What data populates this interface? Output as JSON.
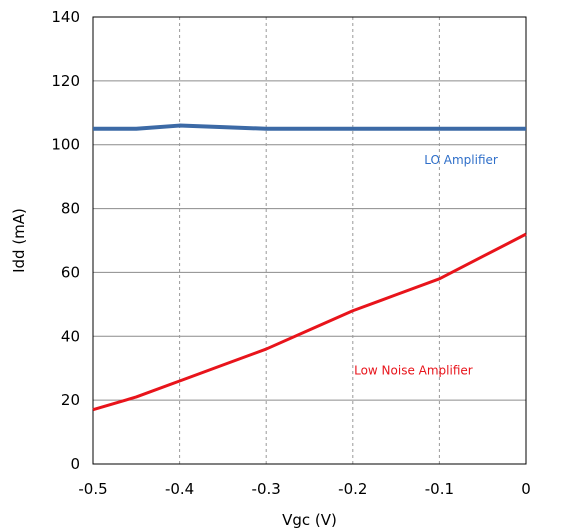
{
  "chart_data": {
    "type": "line",
    "title": "",
    "xlabel": "Vgc (V)",
    "ylabel": "Idd (mA)",
    "xlim": [
      -0.5,
      0
    ],
    "ylim": [
      0,
      140
    ],
    "x_ticks": [
      "-0.5",
      "-0.4",
      "-0.3",
      "-0.2",
      "-0.1",
      "0"
    ],
    "y_ticks": [
      "0",
      "20",
      "40",
      "60",
      "80",
      "100",
      "120",
      "140"
    ],
    "grid": "vertical gridlines dashed, horizontal gridlines solid",
    "legend": "none",
    "series": [
      {
        "name": "LO Amplifier",
        "color": "#3C6AA6",
        "x": [
          -0.5,
          -0.45,
          -0.4,
          -0.35,
          -0.3,
          -0.25,
          -0.2,
          -0.15,
          -0.1,
          -0.05,
          0
        ],
        "y": [
          105,
          105,
          106,
          105.5,
          105,
          105,
          105,
          105,
          105,
          105,
          105
        ]
      },
      {
        "name": "Low Noise Amplifier",
        "color": "#E8141B",
        "x": [
          -0.5,
          -0.45,
          -0.4,
          -0.35,
          -0.3,
          -0.25,
          -0.2,
          -0.15,
          -0.1,
          -0.05,
          0
        ],
        "y": [
          17,
          21,
          26,
          31,
          36,
          42,
          48,
          53,
          58,
          65,
          72
        ]
      }
    ],
    "annotations": [
      {
        "text": "LO Amplifier",
        "color": "#2F6FC9",
        "x": -0.075,
        "y": 94
      },
      {
        "text": "Low Noise Amplifier",
        "color": "#E8141B",
        "x": -0.13,
        "y": 28
      }
    ]
  }
}
